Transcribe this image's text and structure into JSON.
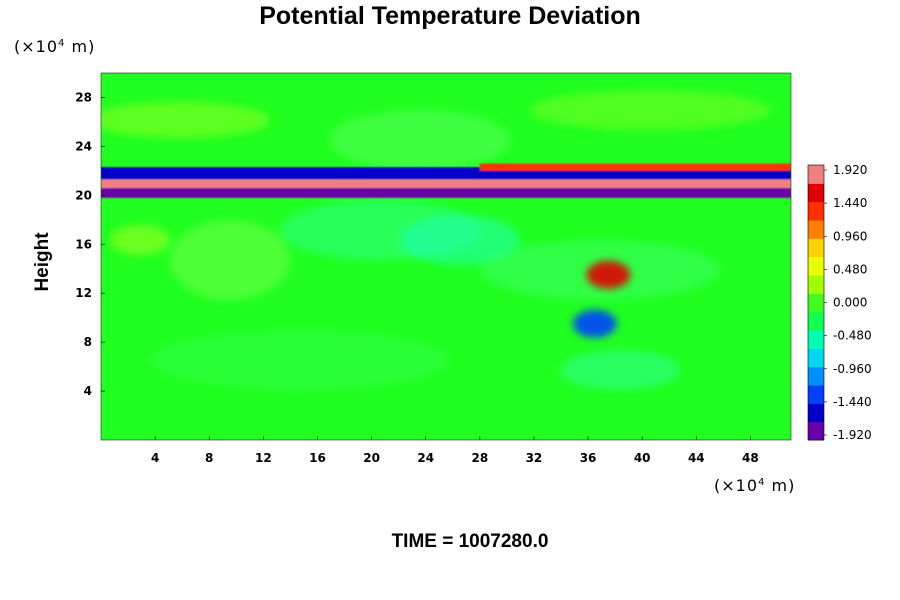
{
  "chart_data": {
    "type": "heatmap",
    "title": "Potential Temperature Deviation",
    "ylabel": "Height",
    "xlabel": "",
    "y_unit": {
      "prefix": "(×10",
      "exp": "4",
      "suffix": " m)"
    },
    "x_unit": {
      "prefix": "(×10",
      "exp": "4",
      "suffix": " m)"
    },
    "x_ticks": [
      "4",
      "8",
      "12",
      "16",
      "20",
      "24",
      "28",
      "32",
      "36",
      "40",
      "44",
      "48"
    ],
    "y_ticks": [
      "4",
      "8",
      "12",
      "16",
      "20",
      "24",
      "28"
    ],
    "xlim": [
      0,
      51
    ],
    "ylim": [
      0,
      30
    ],
    "colorbar": {
      "ticks": [
        "1.920",
        "1.440",
        "0.960",
        "0.480",
        "0.000",
        "-0.480",
        "-0.960",
        "-1.440",
        "-1.920"
      ],
      "range": [
        -2.0,
        2.0
      ],
      "colors": [
        "#6a00a8",
        "#0000c8",
        "#0040ff",
        "#0090ff",
        "#00d8f0",
        "#00ffb0",
        "#10ff50",
        "#40ff20",
        "#a0ff00",
        "#e8ff00",
        "#ffd000",
        "#ff8000",
        "#ff3000",
        "#e00000",
        "#f08080"
      ]
    },
    "features": [
      {
        "name": "Dark layer",
        "y_range": [
          19.8,
          20.6
        ],
        "x_range": [
          0,
          51
        ],
        "value": -1.9
      },
      {
        "name": "Warm layer",
        "y_range": [
          20.6,
          21.3
        ],
        "x_range": [
          0,
          51
        ],
        "value": 1.9
      },
      {
        "name": "Cold layer upper",
        "y_range": [
          21.3,
          22.3
        ],
        "x_range": [
          0,
          51
        ],
        "value": -1.7
      },
      {
        "name": "Warm band",
        "y_range": [
          22.0,
          22.6
        ],
        "x_range": [
          28,
          51
        ],
        "value": 1.3
      },
      {
        "name": "Warm anomaly",
        "center": [
          37.5,
          13.5
        ],
        "value": 1.6
      },
      {
        "name": "Cold anomaly",
        "center": [
          36.5,
          9.5
        ],
        "value": -1.3
      }
    ]
  },
  "footer": {
    "text": "TIME = 1007280.0"
  }
}
